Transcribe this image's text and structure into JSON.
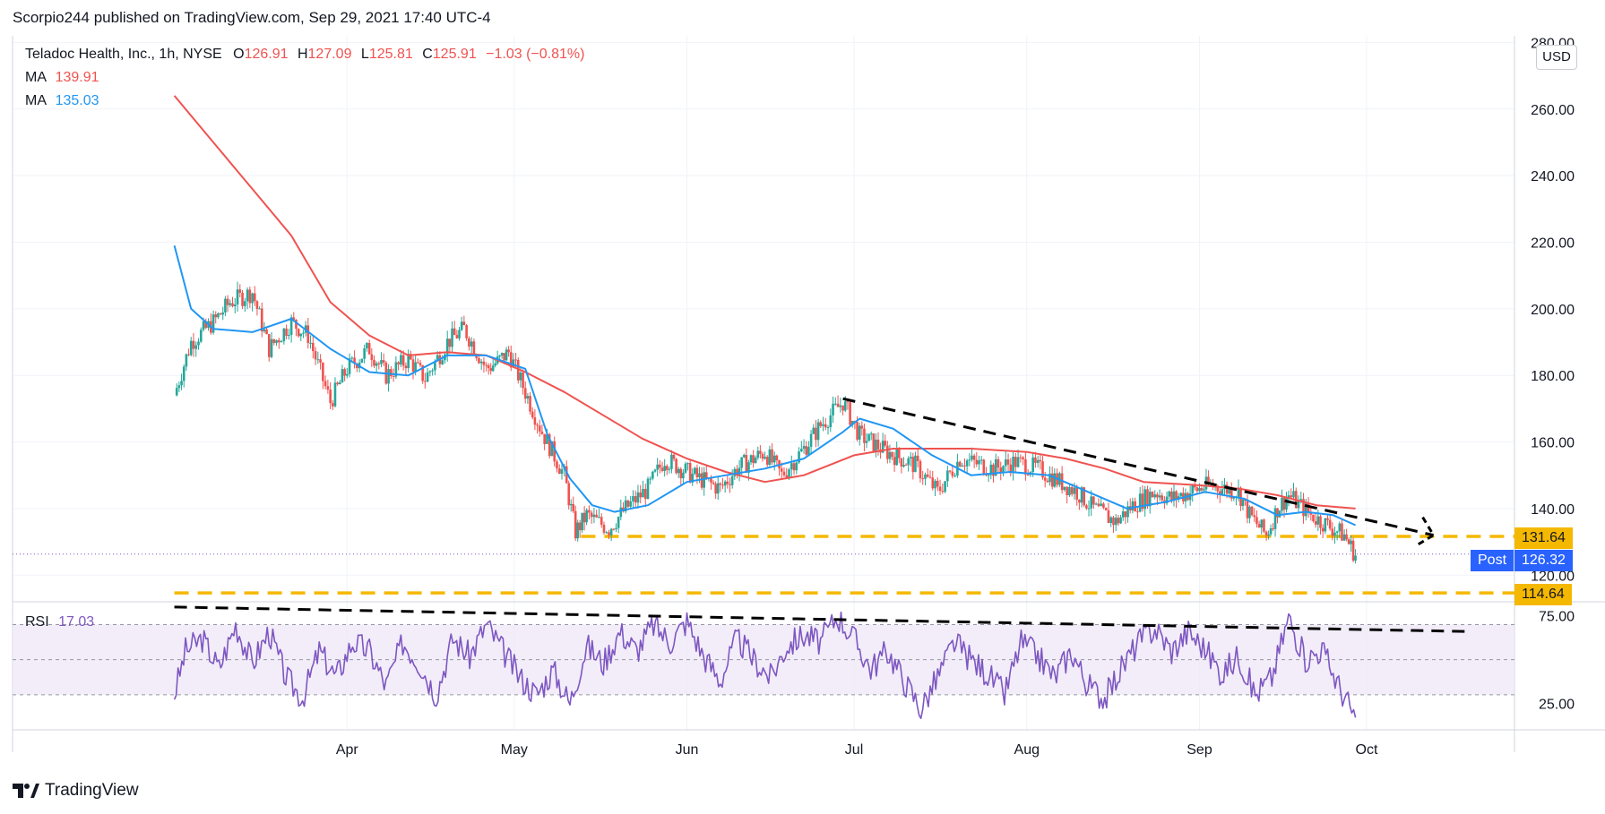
{
  "header": {
    "published_by": "Scorpio244 published on TradingView.com, Sep 29, 2021 17:40 UTC-4"
  },
  "legend": {
    "symbol": "Teladoc Health, Inc., 1h, NYSE",
    "o_label": "O",
    "o": "126.91",
    "h_label": "H",
    "h": "127.09",
    "l_label": "L",
    "l": "125.81",
    "c_label": "C",
    "c": "125.91",
    "change": "−1.03 (−0.81%)",
    "ma1_label": "MA",
    "ma1_value": "139.91",
    "ma2_label": "MA",
    "ma2_value": "135.03",
    "rsi_label": "RSI",
    "rsi_value": "17.03"
  },
  "axis": {
    "currency": "USD"
  },
  "price_tags": {
    "support_upper": "131.64",
    "support_lower": "114.64",
    "post_label": "Post",
    "post_value": "126.32"
  },
  "footer": {
    "brand": "TradingView"
  },
  "colors": {
    "ma1": "#ef5350",
    "ma2": "#2196f3",
    "rsi": "#7e57c2",
    "up": "#26a69a",
    "down": "#ef5350",
    "support": "#f5b800"
  },
  "chart_data": [
    {
      "type": "candlestick",
      "title": "Teladoc Health, Inc., 1h, NYSE",
      "x_ticks": [
        "Apr",
        "May",
        "Jun",
        "Jul",
        "Aug",
        "Sep",
        "Oct"
      ],
      "y_ticks": [
        120,
        140,
        160,
        180,
        200,
        220,
        240,
        260,
        280
      ],
      "ylim": [
        112,
        282
      ],
      "series": [
        {
          "name": "Price",
          "points": [
            [
              "Mar 1",
              174
            ],
            [
              "Mar 4",
              190
            ],
            [
              "Mar 8",
              196
            ],
            [
              "Mar 11",
              202
            ],
            [
              "Mar 15",
              205
            ],
            [
              "Mar 18",
              188
            ],
            [
              "Mar 22",
              196
            ],
            [
              "Mar 25",
              192
            ],
            [
              "Mar 29",
              172
            ],
            [
              "Apr 1",
              182
            ],
            [
              "Apr 5",
              188
            ],
            [
              "Apr 8",
              180
            ],
            [
              "Apr 12",
              185
            ],
            [
              "Apr 15",
              179
            ],
            [
              "Apr 19",
              190
            ],
            [
              "Apr 22",
              194
            ],
            [
              "Apr 26",
              182
            ],
            [
              "Apr 28",
              184
            ],
            [
              "Apr 30",
              187
            ],
            [
              "May 3",
              175
            ],
            [
              "May 6",
              163
            ],
            [
              "May 10",
              150
            ],
            [
              "May 12",
              133
            ],
            [
              "May 14",
              138
            ],
            [
              "May 18",
              134
            ],
            [
              "May 21",
              140
            ],
            [
              "May 25",
              146
            ],
            [
              "May 28",
              155
            ],
            [
              "Jun 2",
              150
            ],
            [
              "Jun 7",
              146
            ],
            [
              "Jun 10",
              152
            ],
            [
              "Jun 15",
              157
            ],
            [
              "Jun 18",
              150
            ],
            [
              "Jun 22",
              158
            ],
            [
              "Jun 25",
              165
            ],
            [
              "Jun 29",
              172
            ],
            [
              "Jul 2",
              162
            ],
            [
              "Jul 7",
              157
            ],
            [
              "Jul 12",
              153
            ],
            [
              "Jul 16",
              145
            ],
            [
              "Jul 20",
              155
            ],
            [
              "Jul 26",
              152
            ],
            [
              "Jul 30",
              154
            ],
            [
              "Aug 3",
              152
            ],
            [
              "Aug 6",
              149
            ],
            [
              "Aug 10",
              145
            ],
            [
              "Aug 13",
              140
            ],
            [
              "Aug 17",
              136
            ],
            [
              "Aug 20",
              141
            ],
            [
              "Aug 24",
              145
            ],
            [
              "Aug 27",
              143
            ],
            [
              "Sep 1",
              146
            ],
            [
              "Sep 3",
              147
            ],
            [
              "Sep 8",
              145
            ],
            [
              "Sep 10",
              138
            ],
            [
              "Sep 13",
              132
            ],
            [
              "Sep 15",
              140
            ],
            [
              "Sep 17",
              144
            ],
            [
              "Sep 21",
              138
            ],
            [
              "Sep 24",
              135
            ],
            [
              "Sep 27",
              132
            ],
            [
              "Sep 29",
              126
            ]
          ]
        },
        {
          "name": "MA",
          "label": "139.91",
          "points": [
            [
              "Mar 1",
              264
            ],
            [
              "Mar 8",
              250
            ],
            [
              "Mar 15",
              236
            ],
            [
              "Mar 22",
              222
            ],
            [
              "Mar 29",
              202
            ],
            [
              "Apr 5",
              192
            ],
            [
              "Apr 12",
              186
            ],
            [
              "Apr 19",
              187
            ],
            [
              "Apr 26",
              186
            ],
            [
              "May 3",
              181
            ],
            [
              "May 10",
              175
            ],
            [
              "May 17",
              168
            ],
            [
              "May 24",
              161
            ],
            [
              "Jun 1",
              155
            ],
            [
              "Jun 8",
              151
            ],
            [
              "Jun 15",
              148
            ],
            [
              "Jun 22",
              150
            ],
            [
              "Jul 1",
              156
            ],
            [
              "Jul 8",
              158
            ],
            [
              "Jul 15",
              158
            ],
            [
              "Jul 22",
              158
            ],
            [
              "Aug 1",
              157
            ],
            [
              "Aug 8",
              155
            ],
            [
              "Aug 15",
              152
            ],
            [
              "Aug 22",
              148
            ],
            [
              "Sep 1",
              147
            ],
            [
              "Sep 8",
              146
            ],
            [
              "Sep 15",
              144
            ],
            [
              "Sep 22",
              141
            ],
            [
              "Sep 29",
              140
            ]
          ]
        },
        {
          "name": "MA",
          "label": "135.03",
          "points": [
            [
              "Mar 1",
              219
            ],
            [
              "Mar 4",
              200
            ],
            [
              "Mar 8",
              194
            ],
            [
              "Mar 15",
              193
            ],
            [
              "Mar 22",
              197
            ],
            [
              "Mar 29",
              188
            ],
            [
              "Apr 5",
              181
            ],
            [
              "Apr 12",
              180
            ],
            [
              "Apr 19",
              186
            ],
            [
              "Apr 26",
              186
            ],
            [
              "May 3",
              182
            ],
            [
              "May 7",
              162
            ],
            [
              "May 11",
              149
            ],
            [
              "May 15",
              141
            ],
            [
              "May 19",
              139
            ],
            [
              "May 25",
              141
            ],
            [
              "Jun 1",
              148
            ],
            [
              "Jun 8",
              150
            ],
            [
              "Jun 15",
              152
            ],
            [
              "Jun 22",
              155
            ],
            [
              "Jun 29",
              163
            ],
            [
              "Jul 2",
              167
            ],
            [
              "Jul 8",
              164
            ],
            [
              "Jul 15",
              156
            ],
            [
              "Jul 22",
              150
            ],
            [
              "Jul 29",
              151
            ],
            [
              "Aug 5",
              150
            ],
            [
              "Aug 12",
              145
            ],
            [
              "Aug 19",
              140
            ],
            [
              "Aug 26",
              142
            ],
            [
              "Sep 2",
              145
            ],
            [
              "Sep 9",
              143
            ],
            [
              "Sep 15",
              138
            ],
            [
              "Sep 20",
              139
            ],
            [
              "Sep 25",
              138
            ],
            [
              "Sep 29",
              135
            ]
          ]
        }
      ],
      "annotations": [
        {
          "type": "trendline",
          "style": "dashed",
          "color": "#000000",
          "from": [
            "Jun 29",
            173
          ],
          "to": [
            "Oct 13",
            132
          ]
        },
        {
          "type": "support",
          "style": "dashed",
          "color": "#f5b800",
          "value": 131.64,
          "from": "May 13"
        },
        {
          "type": "support",
          "style": "dashed",
          "color": "#f5b800",
          "value": 114.64,
          "from": "Mar 1"
        },
        {
          "type": "last_price",
          "style": "dotted",
          "value": 126.32
        }
      ]
    },
    {
      "type": "line",
      "title": "RSI",
      "y_ticks": [
        25.0,
        75.0
      ],
      "bands": [
        30,
        50,
        70
      ],
      "ylim": [
        10,
        83
      ],
      "series": [
        {
          "name": "RSI",
          "label": "17.03",
          "points": [
            [
              "Mar 1",
              30
            ],
            [
              "Mar 3",
              55
            ],
            [
              "Mar 6",
              62
            ],
            [
              "Mar 9",
              45
            ],
            [
              "Mar 12",
              70
            ],
            [
              "Mar 15",
              48
            ],
            [
              "Mar 18",
              66
            ],
            [
              "Mar 21",
              40
            ],
            [
              "Mar 24",
              28
            ],
            [
              "Mar 27",
              55
            ],
            [
              "Mar 30",
              40
            ],
            [
              "Apr 2",
              60
            ],
            [
              "Apr 5",
              55
            ],
            [
              "Apr 8",
              35
            ],
            [
              "Apr 11",
              60
            ],
            [
              "Apr 14",
              48
            ],
            [
              "Apr 17",
              30
            ],
            [
              "Apr 20",
              62
            ],
            [
              "Apr 23",
              52
            ],
            [
              "Apr 26",
              70
            ],
            [
              "Apr 29",
              55
            ],
            [
              "May 2",
              40
            ],
            [
              "May 5",
              30
            ],
            [
              "May 8",
              44
            ],
            [
              "May 11",
              25
            ],
            [
              "May 14",
              58
            ],
            [
              "May 17",
              48
            ],
            [
              "May 20",
              66
            ],
            [
              "May 23",
              55
            ],
            [
              "May 26",
              70
            ],
            [
              "May 29",
              60
            ],
            [
              "Jun 1",
              72
            ],
            [
              "Jun 4",
              52
            ],
            [
              "Jun 7",
              38
            ],
            [
              "Jun 10",
              62
            ],
            [
              "Jun 13",
              50
            ],
            [
              "Jun 16",
              40
            ],
            [
              "Jun 19",
              58
            ],
            [
              "Jun 22",
              64
            ],
            [
              "Jun 25",
              60
            ],
            [
              "Jun 28",
              75
            ],
            [
              "Jul 1",
              62
            ],
            [
              "Jul 4",
              45
            ],
            [
              "Jul 7",
              55
            ],
            [
              "Jul 10",
              38
            ],
            [
              "Jul 13",
              22
            ],
            [
              "Jul 16",
              40
            ],
            [
              "Jul 19",
              60
            ],
            [
              "Jul 22",
              50
            ],
            [
              "Jul 25",
              42
            ],
            [
              "Jul 28",
              30
            ],
            [
              "Jul 31",
              60
            ],
            [
              "Aug 3",
              52
            ],
            [
              "Aug 6",
              40
            ],
            [
              "Aug 9",
              55
            ],
            [
              "Aug 12",
              35
            ],
            [
              "Aug 15",
              28
            ],
            [
              "Aug 18",
              45
            ],
            [
              "Aug 21",
              60
            ],
            [
              "Aug 24",
              68
            ],
            [
              "Aug 27",
              55
            ],
            [
              "Aug 30",
              66
            ],
            [
              "Sep 2",
              56
            ],
            [
              "Sep 5",
              42
            ],
            [
              "Sep 8",
              52
            ],
            [
              "Sep 11",
              30
            ],
            [
              "Sep 14",
              40
            ],
            [
              "Sep 17",
              74
            ],
            [
              "Sep 20",
              50
            ],
            [
              "Sep 23",
              56
            ],
            [
              "Sep 26",
              35
            ],
            [
              "Sep 29",
              17
            ]
          ]
        }
      ],
      "annotations": [
        {
          "type": "trendline",
          "style": "dashed",
          "color": "#000000",
          "from": [
            "Mar 1",
            80
          ],
          "to": [
            "Oct 20",
            66
          ]
        }
      ]
    }
  ]
}
